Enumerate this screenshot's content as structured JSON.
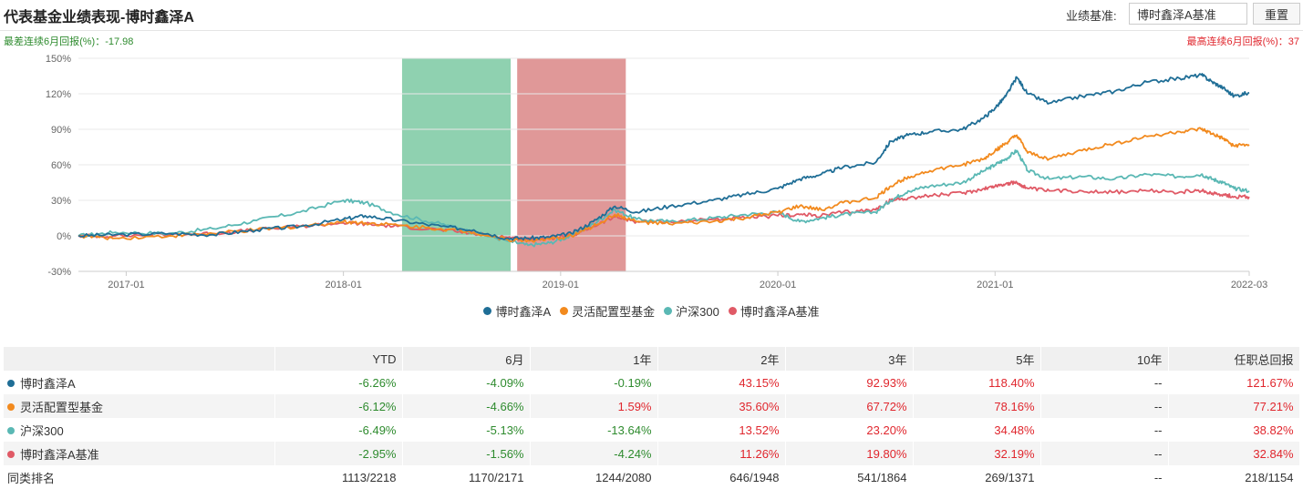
{
  "header": {
    "title": "代表基金业绩表现-博时鑫泽A",
    "benchmark_label": "业绩基准:",
    "benchmark_value": "博时鑫泽A基准",
    "reset_label": "重置"
  },
  "summary": {
    "worst": "最差连续6月回报(%)：-17.98",
    "best": "最高连续6月回报(%)：37"
  },
  "chart_data": {
    "type": "line",
    "x_tick_labels": [
      "2017-01",
      "2018-01",
      "2019-01",
      "2020-01",
      "2021-01",
      "2022-03"
    ],
    "y_tick_labels": [
      "150%",
      "120%",
      "90%",
      "60%",
      "30%",
      "0%",
      "-30%"
    ],
    "ylim": [
      -30,
      150
    ],
    "x_unit": "year",
    "xlim": [
      2016.78,
      2022.17
    ],
    "x_ticks": [
      2017.0,
      2018.0,
      2019.0,
      2020.0,
      2021.0,
      2022.17
    ],
    "bands": [
      {
        "from": 2018.27,
        "to": 2018.77,
        "color": "#8fd1b0",
        "meaning": "worst-6-month"
      },
      {
        "from": 2018.8,
        "to": 2019.3,
        "color": "#e09898",
        "meaning": "best-6-month"
      }
    ],
    "series": [
      {
        "name": "博时鑫泽A",
        "color": "#1f6e96",
        "points": [
          [
            2016.78,
            0
          ],
          [
            2016.95,
            1
          ],
          [
            2017.2,
            2
          ],
          [
            2017.4,
            1
          ],
          [
            2017.6,
            5
          ],
          [
            2017.8,
            8
          ],
          [
            2018.0,
            14
          ],
          [
            2018.1,
            17
          ],
          [
            2018.25,
            13
          ],
          [
            2018.45,
            8
          ],
          [
            2018.6,
            5
          ],
          [
            2018.75,
            -2
          ],
          [
            2018.85,
            -2
          ],
          [
            2018.95,
            -1
          ],
          [
            2019.05,
            2
          ],
          [
            2019.15,
            12
          ],
          [
            2019.25,
            25
          ],
          [
            2019.35,
            20
          ],
          [
            2019.5,
            25
          ],
          [
            2019.7,
            30
          ],
          [
            2019.85,
            35
          ],
          [
            2020.0,
            40
          ],
          [
            2020.1,
            48
          ],
          [
            2020.2,
            52
          ],
          [
            2020.3,
            58
          ],
          [
            2020.45,
            62
          ],
          [
            2020.52,
            80
          ],
          [
            2020.6,
            85
          ],
          [
            2020.7,
            88
          ],
          [
            2020.85,
            90
          ],
          [
            2020.95,
            100
          ],
          [
            2021.0,
            108
          ],
          [
            2021.05,
            118
          ],
          [
            2021.1,
            134
          ],
          [
            2021.15,
            120
          ],
          [
            2021.25,
            112
          ],
          [
            2021.4,
            118
          ],
          [
            2021.55,
            122
          ],
          [
            2021.7,
            130
          ],
          [
            2021.85,
            133
          ],
          [
            2021.95,
            136
          ],
          [
            2022.0,
            130
          ],
          [
            2022.05,
            125
          ],
          [
            2022.1,
            118
          ],
          [
            2022.17,
            121
          ]
        ]
      },
      {
        "name": "灵活配置型基金",
        "color": "#f28a1e",
        "points": [
          [
            2016.78,
            0
          ],
          [
            2016.95,
            -2
          ],
          [
            2017.2,
            0
          ],
          [
            2017.4,
            2
          ],
          [
            2017.6,
            5
          ],
          [
            2017.8,
            8
          ],
          [
            2018.0,
            12
          ],
          [
            2018.1,
            11
          ],
          [
            2018.25,
            9
          ],
          [
            2018.45,
            6
          ],
          [
            2018.6,
            3
          ],
          [
            2018.75,
            -3
          ],
          [
            2018.85,
            -4
          ],
          [
            2018.95,
            -3
          ],
          [
            2019.05,
            0
          ],
          [
            2019.15,
            8
          ],
          [
            2019.25,
            18
          ],
          [
            2019.35,
            12
          ],
          [
            2019.5,
            10
          ],
          [
            2019.7,
            12
          ],
          [
            2019.85,
            15
          ],
          [
            2020.0,
            20
          ],
          [
            2020.1,
            25
          ],
          [
            2020.2,
            22
          ],
          [
            2020.3,
            28
          ],
          [
            2020.45,
            32
          ],
          [
            2020.52,
            42
          ],
          [
            2020.6,
            50
          ],
          [
            2020.7,
            55
          ],
          [
            2020.85,
            60
          ],
          [
            2020.95,
            65
          ],
          [
            2021.0,
            72
          ],
          [
            2021.05,
            78
          ],
          [
            2021.1,
            85
          ],
          [
            2021.15,
            70
          ],
          [
            2021.25,
            65
          ],
          [
            2021.4,
            72
          ],
          [
            2021.55,
            78
          ],
          [
            2021.7,
            84
          ],
          [
            2021.85,
            88
          ],
          [
            2021.95,
            90
          ],
          [
            2022.0,
            86
          ],
          [
            2022.05,
            82
          ],
          [
            2022.1,
            76
          ],
          [
            2022.17,
            77
          ]
        ]
      },
      {
        "name": "沪深300",
        "color": "#5ab8b4",
        "points": [
          [
            2016.78,
            0
          ],
          [
            2016.95,
            3
          ],
          [
            2017.2,
            2
          ],
          [
            2017.4,
            6
          ],
          [
            2017.6,
            13
          ],
          [
            2017.8,
            20
          ],
          [
            2018.0,
            30
          ],
          [
            2018.1,
            28
          ],
          [
            2018.25,
            18
          ],
          [
            2018.45,
            10
          ],
          [
            2018.6,
            3
          ],
          [
            2018.75,
            -4
          ],
          [
            2018.85,
            -8
          ],
          [
            2018.95,
            -6
          ],
          [
            2019.05,
            0
          ],
          [
            2019.15,
            10
          ],
          [
            2019.25,
            22
          ],
          [
            2019.35,
            14
          ],
          [
            2019.5,
            12
          ],
          [
            2019.7,
            15
          ],
          [
            2019.85,
            18
          ],
          [
            2020.0,
            20
          ],
          [
            2020.1,
            12
          ],
          [
            2020.2,
            15
          ],
          [
            2020.3,
            18
          ],
          [
            2020.45,
            20
          ],
          [
            2020.52,
            30
          ],
          [
            2020.6,
            38
          ],
          [
            2020.7,
            42
          ],
          [
            2020.85,
            45
          ],
          [
            2020.95,
            55
          ],
          [
            2021.0,
            60
          ],
          [
            2021.05,
            65
          ],
          [
            2021.1,
            72
          ],
          [
            2021.15,
            55
          ],
          [
            2021.25,
            48
          ],
          [
            2021.4,
            50
          ],
          [
            2021.55,
            48
          ],
          [
            2021.7,
            52
          ],
          [
            2021.85,
            50
          ],
          [
            2021.95,
            52
          ],
          [
            2022.0,
            48
          ],
          [
            2022.05,
            45
          ],
          [
            2022.1,
            40
          ],
          [
            2022.17,
            38
          ]
        ]
      },
      {
        "name": "博时鑫泽A基准",
        "color": "#e05a66",
        "points": [
          [
            2016.78,
            0
          ],
          [
            2016.95,
            0
          ],
          [
            2017.2,
            1
          ],
          [
            2017.4,
            2
          ],
          [
            2017.6,
            5
          ],
          [
            2017.8,
            8
          ],
          [
            2018.0,
            11
          ],
          [
            2018.1,
            10
          ],
          [
            2018.25,
            8
          ],
          [
            2018.45,
            5
          ],
          [
            2018.6,
            2
          ],
          [
            2018.75,
            -1
          ],
          [
            2018.85,
            -3
          ],
          [
            2018.95,
            -2
          ],
          [
            2019.05,
            0
          ],
          [
            2019.15,
            8
          ],
          [
            2019.25,
            16
          ],
          [
            2019.35,
            12
          ],
          [
            2019.5,
            12
          ],
          [
            2019.7,
            14
          ],
          [
            2019.85,
            15
          ],
          [
            2020.0,
            17
          ],
          [
            2020.1,
            18
          ],
          [
            2020.2,
            17
          ],
          [
            2020.3,
            20
          ],
          [
            2020.45,
            22
          ],
          [
            2020.52,
            30
          ],
          [
            2020.6,
            32
          ],
          [
            2020.7,
            34
          ],
          [
            2020.85,
            36
          ],
          [
            2020.95,
            40
          ],
          [
            2021.0,
            42
          ],
          [
            2021.05,
            44
          ],
          [
            2021.1,
            45
          ],
          [
            2021.15,
            40
          ],
          [
            2021.25,
            38
          ],
          [
            2021.4,
            38
          ],
          [
            2021.55,
            37
          ],
          [
            2021.7,
            38
          ],
          [
            2021.85,
            37
          ],
          [
            2021.95,
            38
          ],
          [
            2022.0,
            36
          ],
          [
            2022.05,
            35
          ],
          [
            2022.1,
            33
          ],
          [
            2022.17,
            33
          ]
        ]
      }
    ]
  },
  "table": {
    "columns": [
      "",
      "YTD",
      "6月",
      "1年",
      "2年",
      "3年",
      "5年",
      "10年",
      "任职总回报"
    ],
    "rows": [
      {
        "name": "博时鑫泽A",
        "color": "#1f6e96",
        "values": [
          "-6.26%",
          "-4.09%",
          "-0.19%",
          "43.15%",
          "92.93%",
          "118.40%",
          "--",
          "121.67%"
        ]
      },
      {
        "name": "灵活配置型基金",
        "color": "#f28a1e",
        "values": [
          "-6.12%",
          "-4.66%",
          "1.59%",
          "35.60%",
          "67.72%",
          "78.16%",
          "--",
          "77.21%"
        ]
      },
      {
        "name": "沪深300",
        "color": "#5ab8b4",
        "values": [
          "-6.49%",
          "-5.13%",
          "-13.64%",
          "13.52%",
          "23.20%",
          "34.48%",
          "--",
          "38.82%"
        ]
      },
      {
        "name": "博时鑫泽A基准",
        "color": "#e05a66",
        "values": [
          "-2.95%",
          "-1.56%",
          "-4.24%",
          "11.26%",
          "19.80%",
          "32.19%",
          "--",
          "32.84%"
        ]
      }
    ],
    "rank_row": {
      "name": "同类排名",
      "values": [
        "1113/2218",
        "1170/2171",
        "1244/2080",
        "646/1948",
        "541/1864",
        "269/1371",
        "--",
        "218/1154"
      ]
    }
  }
}
